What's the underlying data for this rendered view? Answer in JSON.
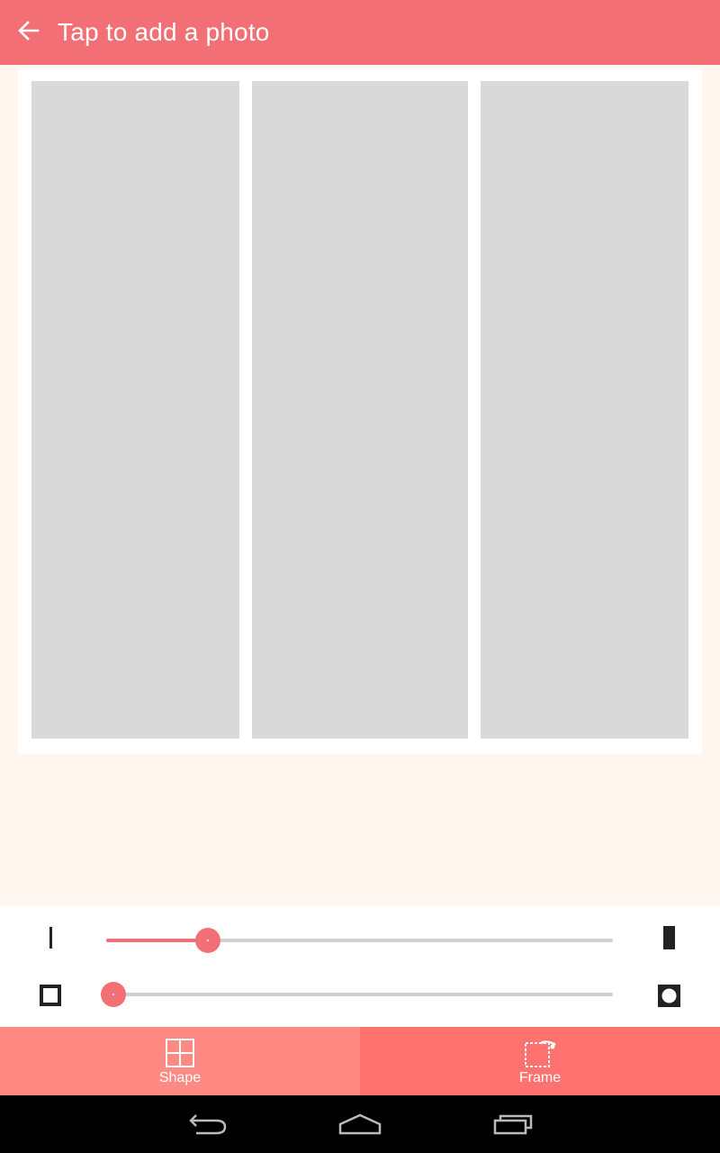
{
  "appbar": {
    "title": "Tap to add a photo",
    "back_icon": "arrow-left-icon",
    "background": "#f27075"
  },
  "collage": {
    "cells": [
      {
        "name": "photo-cell-1"
      },
      {
        "name": "photo-cell-2"
      },
      {
        "name": "photo-cell-3"
      }
    ],
    "placeholder_color": "#d9d9d9"
  },
  "sliders": {
    "border_width": {
      "value": 0.2,
      "min_icon": "thin-line-icon",
      "max_icon": "thick-line-icon"
    },
    "corner_radius": {
      "value": 0.0,
      "min_icon": "square-corner-icon",
      "max_icon": "rounded-corner-icon"
    },
    "accent": "#f27075"
  },
  "tabs": [
    {
      "label": "Shape",
      "icon": "grid-layout-icon",
      "selected": false
    },
    {
      "label": "Frame",
      "icon": "frame-icon",
      "selected": true
    }
  ],
  "system_nav": {
    "buttons": [
      "back-icon",
      "home-icon",
      "recent-apps-icon"
    ]
  }
}
